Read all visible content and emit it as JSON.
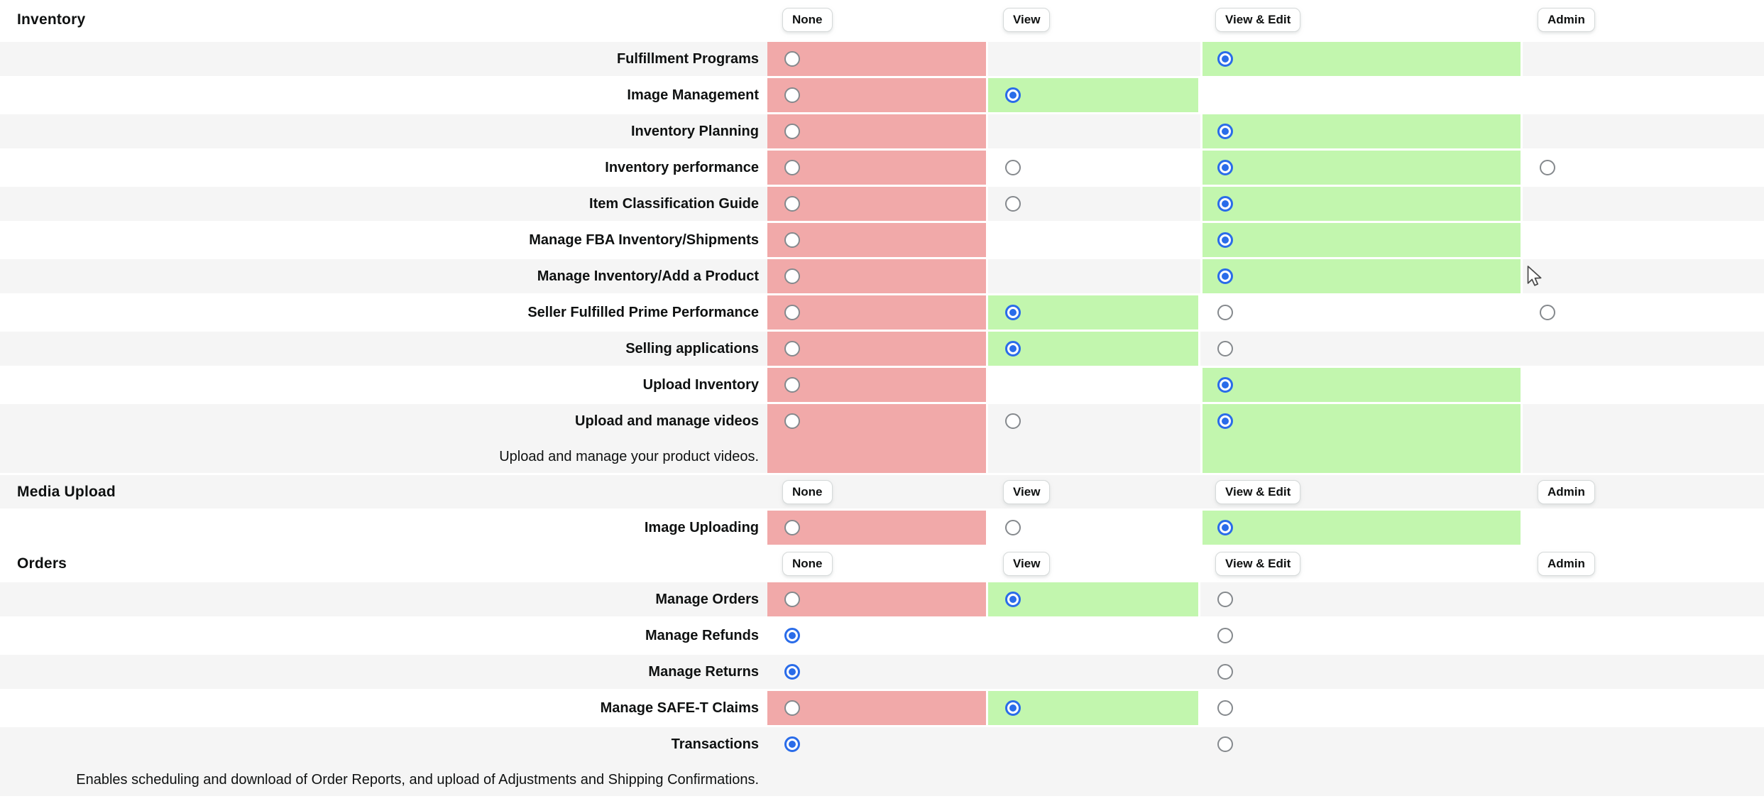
{
  "colors": {
    "cell_none_denied": "#f1a9a9",
    "cell_allowed": "#c2f6ae",
    "row_shade": "#f5f5f5",
    "radio_selected": "#2a6ce9",
    "radio_border": "#85898d",
    "text": "#0f1111",
    "button_border": "#d5d9d9"
  },
  "table": {
    "columns": [
      {
        "key": "none",
        "label": "None"
      },
      {
        "key": "view",
        "label": "View"
      },
      {
        "key": "viewedit",
        "label": "View & Edit"
      },
      {
        "key": "admin",
        "label": "Admin"
      }
    ],
    "sections": [
      {
        "title": "Inventory",
        "shade": false,
        "rows": [
          {
            "label": "Fulfillment Programs",
            "description": null,
            "shade": true,
            "tall": false,
            "cells": {
              "none": {
                "bg": "red",
                "radio": "unchecked"
              },
              "view": null,
              "viewedit": {
                "bg": "green",
                "radio": "checked"
              },
              "admin": null
            }
          },
          {
            "label": "Image Management",
            "description": null,
            "shade": false,
            "tall": false,
            "cells": {
              "none": {
                "bg": "red",
                "radio": "unchecked"
              },
              "view": {
                "bg": "green",
                "radio": "checked"
              },
              "viewedit": null,
              "admin": null
            }
          },
          {
            "label": "Inventory Planning",
            "description": null,
            "shade": true,
            "tall": false,
            "cells": {
              "none": {
                "bg": "red",
                "radio": "unchecked"
              },
              "view": null,
              "viewedit": {
                "bg": "green",
                "radio": "checked"
              },
              "admin": null
            }
          },
          {
            "label": "Inventory performance",
            "description": null,
            "shade": false,
            "tall": false,
            "cells": {
              "none": {
                "bg": "red",
                "radio": "unchecked"
              },
              "view": {
                "bg": null,
                "radio": "unchecked"
              },
              "viewedit": {
                "bg": "green",
                "radio": "checked"
              },
              "admin": {
                "bg": null,
                "radio": "unchecked"
              }
            }
          },
          {
            "label": "Item Classification Guide",
            "description": null,
            "shade": true,
            "tall": false,
            "cells": {
              "none": {
                "bg": "red",
                "radio": "unchecked"
              },
              "view": {
                "bg": null,
                "radio": "unchecked"
              },
              "viewedit": {
                "bg": "green",
                "radio": "checked"
              },
              "admin": null
            }
          },
          {
            "label": "Manage FBA Inventory/Shipments",
            "description": null,
            "shade": false,
            "tall": false,
            "cells": {
              "none": {
                "bg": "red",
                "radio": "unchecked"
              },
              "view": null,
              "viewedit": {
                "bg": "green",
                "radio": "checked"
              },
              "admin": null
            }
          },
          {
            "label": "Manage Inventory/Add a Product",
            "description": null,
            "shade": true,
            "tall": false,
            "cells": {
              "none": {
                "bg": "red",
                "radio": "unchecked"
              },
              "view": null,
              "viewedit": {
                "bg": "green",
                "radio": "checked"
              },
              "admin": null
            }
          },
          {
            "label": "Seller Fulfilled Prime Performance",
            "description": null,
            "shade": false,
            "tall": false,
            "cells": {
              "none": {
                "bg": "red",
                "radio": "unchecked"
              },
              "view": {
                "bg": "green",
                "radio": "checked"
              },
              "viewedit": {
                "bg": null,
                "radio": "unchecked"
              },
              "admin": {
                "bg": null,
                "radio": "unchecked"
              }
            }
          },
          {
            "label": "Selling applications",
            "description": null,
            "shade": true,
            "tall": false,
            "cells": {
              "none": {
                "bg": "red",
                "radio": "unchecked"
              },
              "view": {
                "bg": "green",
                "radio": "checked"
              },
              "viewedit": {
                "bg": null,
                "radio": "unchecked"
              },
              "admin": null
            }
          },
          {
            "label": "Upload Inventory",
            "description": null,
            "shade": false,
            "tall": false,
            "cells": {
              "none": {
                "bg": "red",
                "radio": "unchecked"
              },
              "view": null,
              "viewedit": {
                "bg": "green",
                "radio": "checked"
              },
              "admin": null
            }
          },
          {
            "label": "Upload and manage videos",
            "description": "Upload and manage your product videos.",
            "shade": true,
            "tall": true,
            "cells": {
              "none": {
                "bg": "red",
                "radio": "unchecked"
              },
              "view": {
                "bg": null,
                "radio": "unchecked"
              },
              "viewedit": {
                "bg": "green",
                "radio": "checked"
              },
              "admin": null
            }
          }
        ]
      },
      {
        "title": "Media Upload",
        "shade": true,
        "rows": [
          {
            "label": "Image Uploading",
            "description": null,
            "shade": false,
            "tall": false,
            "cells": {
              "none": {
                "bg": "red",
                "radio": "unchecked"
              },
              "view": {
                "bg": null,
                "radio": "unchecked"
              },
              "viewedit": {
                "bg": "green",
                "radio": "checked"
              },
              "admin": null
            }
          }
        ]
      },
      {
        "title": "Orders",
        "shade": false,
        "rows": [
          {
            "label": "Manage Orders",
            "description": null,
            "shade": true,
            "tall": false,
            "cells": {
              "none": {
                "bg": "red",
                "radio": "unchecked"
              },
              "view": {
                "bg": "green",
                "radio": "checked"
              },
              "viewedit": {
                "bg": null,
                "radio": "unchecked"
              },
              "admin": null
            }
          },
          {
            "label": "Manage Refunds",
            "description": null,
            "shade": false,
            "tall": false,
            "cells": {
              "none": {
                "bg": null,
                "radio": "checked"
              },
              "view": null,
              "viewedit": {
                "bg": null,
                "radio": "unchecked"
              },
              "admin": null
            }
          },
          {
            "label": "Manage Returns",
            "description": null,
            "shade": true,
            "tall": false,
            "cells": {
              "none": {
                "bg": null,
                "radio": "checked"
              },
              "view": null,
              "viewedit": {
                "bg": null,
                "radio": "unchecked"
              },
              "admin": null
            }
          },
          {
            "label": "Manage SAFE-T Claims",
            "description": null,
            "shade": false,
            "tall": false,
            "cells": {
              "none": {
                "bg": "red",
                "radio": "unchecked"
              },
              "view": {
                "bg": "green",
                "radio": "checked"
              },
              "viewedit": {
                "bg": null,
                "radio": "unchecked"
              },
              "admin": null
            }
          },
          {
            "label": "Transactions",
            "description": "Enables scheduling and download of Order Reports, and upload of Adjustments and Shipping Confirmations.",
            "shade": true,
            "tall": true,
            "cells": {
              "none": {
                "bg": null,
                "radio": "checked"
              },
              "view": null,
              "viewedit": {
                "bg": null,
                "radio": "unchecked"
              },
              "admin": null
            }
          }
        ]
      }
    ]
  }
}
